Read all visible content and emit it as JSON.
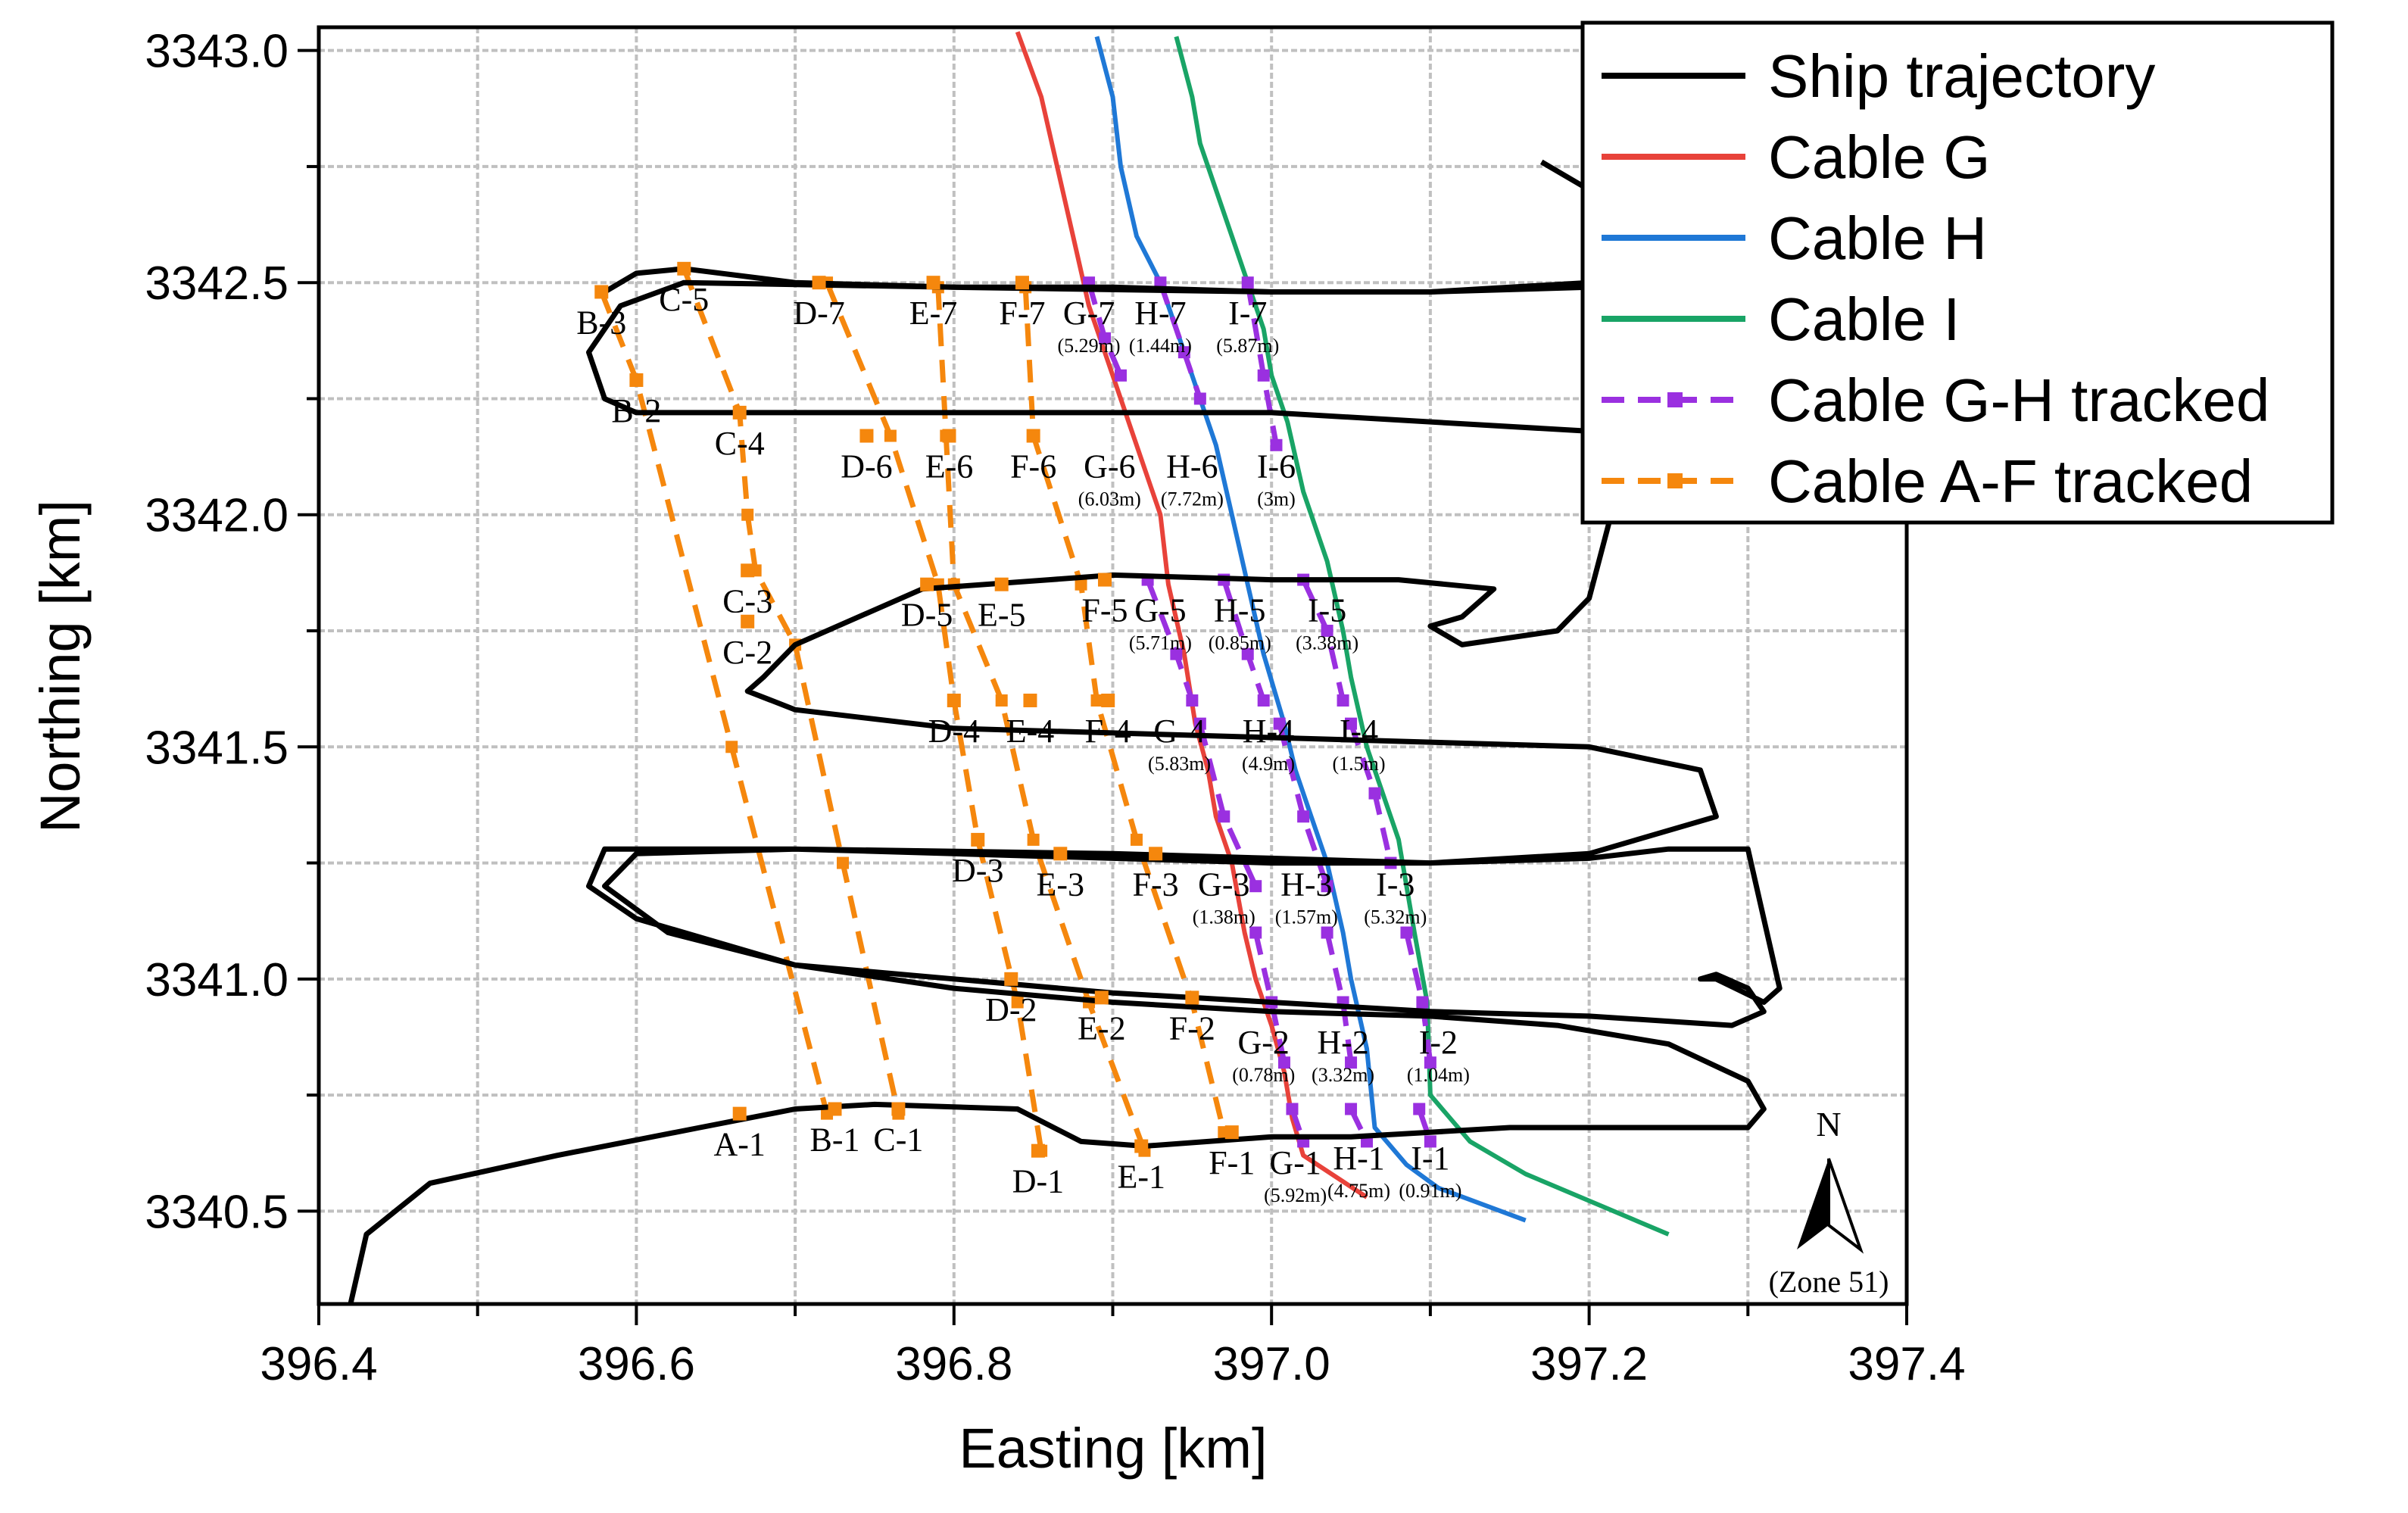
{
  "chart_data": {
    "type": "line",
    "title": "",
    "xlabel": "Easting [km]",
    "ylabel": "Northing [km]",
    "xlim": [
      396.4,
      397.4
    ],
    "ylim": [
      3340.3,
      3343.05
    ],
    "xticks": [
      "396.4",
      "396.6",
      "396.8",
      "397.0",
      "397.2",
      "397.4"
    ],
    "yticks": [
      "3340.5",
      "3341.0",
      "3341.5",
      "3342.0",
      "3342.5",
      "3343.0"
    ],
    "grid": true,
    "legend_position": "top-right",
    "colors": {
      "ship": "#000000",
      "cable_g": "#e8423a",
      "cable_h": "#1f78d6",
      "cable_i": "#19a466",
      "tracked_gh": "#9a30e0",
      "tracked_af": "#f5870d",
      "grid": "#c0c0c0"
    },
    "legend": [
      {
        "label": "Ship trajectory",
        "series": "ship",
        "style": "solid"
      },
      {
        "label": "Cable G",
        "series": "cable_g",
        "style": "solid"
      },
      {
        "label": "Cable H",
        "series": "cable_h",
        "style": "solid"
      },
      {
        "label": "Cable I",
        "series": "cable_i",
        "style": "solid"
      },
      {
        "label": "Cable G-H tracked",
        "series": "tracked_gh",
        "style": "dashed"
      },
      {
        "label": "Cable A-F tracked",
        "series": "tracked_af",
        "style": "dashed"
      }
    ],
    "series": [
      {
        "name": "Cable G",
        "key": "cable_g",
        "x": [
          396.84,
          396.855,
          396.865,
          396.875,
          396.885,
          396.895,
          396.905,
          396.92,
          396.93,
          396.935,
          396.945,
          396.952,
          396.96,
          396.965,
          396.975,
          396.983,
          396.99,
          397.0,
          397.008,
          397.013,
          397.02,
          397.06
        ],
        "y": [
          3343.04,
          3342.9,
          3342.75,
          3342.6,
          3342.45,
          3342.35,
          3342.25,
          3342.1,
          3342.0,
          3341.85,
          3341.7,
          3341.55,
          3341.45,
          3341.35,
          3341.25,
          3341.1,
          3341.0,
          3340.9,
          3340.8,
          3340.7,
          3340.62,
          3340.53
        ]
      },
      {
        "name": "Cable H",
        "key": "cable_h",
        "x": [
          396.89,
          396.9,
          396.905,
          396.915,
          396.93,
          396.94,
          396.955,
          396.965,
          396.975,
          396.985,
          396.995,
          397.008,
          397.015,
          397.025,
          397.035,
          397.045,
          397.05,
          397.06,
          397.065,
          397.085,
          397.105,
          397.16
        ],
        "y": [
          3343.03,
          3342.9,
          3342.75,
          3342.6,
          3342.5,
          3342.4,
          3342.25,
          3342.15,
          3342.0,
          3341.85,
          3341.7,
          3341.55,
          3341.45,
          3341.35,
          3341.25,
          3341.1,
          3341.0,
          3340.85,
          3340.68,
          3340.6,
          3340.55,
          3340.48
        ]
      },
      {
        "name": "Cable I",
        "key": "cable_i",
        "x": [
          396.94,
          396.95,
          396.955,
          396.965,
          396.975,
          396.985,
          396.995,
          397.0,
          397.01,
          397.02,
          397.035,
          397.045,
          397.05,
          397.06,
          397.07,
          397.08,
          397.09,
          397.098,
          397.1,
          397.125,
          397.16,
          397.25
        ],
        "y": [
          3343.03,
          3342.9,
          3342.8,
          3342.7,
          3342.6,
          3342.5,
          3342.4,
          3342.3,
          3342.2,
          3342.05,
          3341.9,
          3341.75,
          3341.65,
          3341.5,
          3341.4,
          3341.3,
          3341.1,
          3340.95,
          3340.75,
          3340.65,
          3340.58,
          3340.45
        ]
      },
      {
        "name": "Cable G-H tracked",
        "key": "tracked_gh",
        "dashed": true,
        "segments": [
          {
            "x": [
              396.885,
              396.895,
              396.905
            ],
            "y": [
              3342.5,
              3342.38,
              3342.3
            ]
          },
          {
            "x": [
              396.93,
              396.945,
              396.955
            ],
            "y": [
              3342.5,
              3342.35,
              3342.25
            ]
          },
          {
            "x": [
              396.985,
              396.995,
              397.003
            ],
            "y": [
              3342.5,
              3342.3,
              3342.15
            ]
          },
          {
            "x": [
              396.922,
              396.94,
              396.95
            ],
            "y": [
              3341.86,
              3341.7,
              3341.6
            ]
          },
          {
            "x": [
              396.97,
              396.985,
              396.995
            ],
            "y": [
              3341.86,
              3341.7,
              3341.6
            ]
          },
          {
            "x": [
              397.02,
              397.035,
              397.045
            ],
            "y": [
              3341.86,
              3341.75,
              3341.6
            ]
          },
          {
            "x": [
              396.955,
              396.97,
              396.99
            ],
            "y": [
              3341.55,
              3341.35,
              3341.2
            ]
          },
          {
            "x": [
              397.005,
              397.02,
              397.035
            ],
            "y": [
              3341.55,
              3341.35,
              3341.2
            ]
          },
          {
            "x": [
              397.05,
              397.065,
              397.075
            ],
            "y": [
              3341.55,
              3341.4,
              3341.25
            ]
          },
          {
            "x": [
              396.99,
              397.0,
              397.008
            ],
            "y": [
              3341.1,
              3340.95,
              3340.82
            ]
          },
          {
            "x": [
              397.035,
              397.045,
              397.05
            ],
            "y": [
              3341.1,
              3340.95,
              3340.82
            ]
          },
          {
            "x": [
              397.085,
              397.095,
              397.1
            ],
            "y": [
              3341.1,
              3340.95,
              3340.82
            ]
          },
          {
            "x": [
              397.013,
              397.02
            ],
            "y": [
              3340.72,
              3340.65
            ]
          },
          {
            "x": [
              397.05,
              397.06
            ],
            "y": [
              3340.72,
              3340.65
            ]
          },
          {
            "x": [
              397.093,
              397.1
            ],
            "y": [
              3340.72,
              3340.65
            ]
          }
        ]
      },
      {
        "name": "Cable A-F tracked",
        "key": "tracked_af",
        "dashed": true,
        "segments": [
          {
            "x": [
              396.578,
              396.6,
              396.66,
              396.72
            ],
            "y": [
              3342.48,
              3342.29,
              3341.5,
              3340.71
            ]
          },
          {
            "x": [
              396.63,
              396.665,
              396.67,
              396.675,
              396.7,
              396.73,
              396.765
            ],
            "y": [
              3342.53,
              3342.22,
              3342.0,
              3341.88,
              3341.72,
              3341.25,
              3340.71
            ]
          },
          {
            "x": [
              396.72,
              396.76,
              396.79,
              396.8,
              396.815,
              396.84,
              396.855
            ],
            "y": [
              3342.5,
              3342.17,
              3341.85,
              3341.6,
              3341.3,
              3340.95,
              3340.63
            ]
          },
          {
            "x": [
              396.79,
              396.795,
              396.8,
              396.83,
              396.85,
              396.885,
              396.92
            ],
            "y": [
              3342.49,
              3342.17,
              3341.85,
              3341.6,
              3341.3,
              3340.95,
              3340.63
            ]
          },
          {
            "x": [
              396.845,
              396.85,
              396.88,
              396.89,
              396.915,
              396.95,
              396.97
            ],
            "y": [
              3342.49,
              3342.17,
              3341.85,
              3341.6,
              3341.3,
              3340.95,
              3340.67
            ]
          }
        ]
      },
      {
        "name": "Ship trajectory",
        "key": "ship",
        "x": [
          396.42,
          396.43,
          396.47,
          396.55,
          396.64,
          396.7,
          396.75,
          396.84,
          396.88,
          396.92,
          396.96,
          397.0,
          397.05,
          397.1,
          397.15,
          397.3,
          397.31,
          397.3,
          397.25,
          397.18,
          397.1,
          397.0,
          396.9,
          396.8,
          396.7,
          396.6,
          396.57,
          396.58,
          396.7,
          396.8,
          396.9,
          397.0,
          397.1,
          397.2,
          397.25,
          397.3,
          397.32,
          397.31,
          397.28,
          397.27,
          397.28,
          397.3,
          397.31,
          397.29,
          397.2,
          397.1,
          397.0,
          396.9,
          396.8,
          396.7,
          396.62,
          396.58,
          396.6,
          396.7,
          396.9,
          397.0,
          397.1,
          397.2,
          397.28,
          397.27,
          397.2,
          397.0,
          396.8,
          396.7,
          396.67,
          396.68,
          396.7,
          396.78,
          396.86,
          396.9,
          397.0,
          397.08,
          397.14,
          397.12,
          397.1,
          397.12,
          397.18,
          397.2,
          397.21,
          397.22,
          397.2,
          397.0,
          396.8,
          396.6,
          396.58,
          396.57,
          396.59,
          396.63,
          396.8,
          397.0,
          397.1,
          397.2,
          397.24,
          397.2,
          397.17,
          397.17
        ],
        "y": [
          3340.3,
          3340.45,
          3340.56,
          3340.62,
          3340.68,
          3340.72,
          3340.73,
          3340.72,
          3340.65,
          3340.64,
          3340.65,
          3340.66,
          3340.66,
          3340.67,
          3340.68,
          3340.68,
          3340.72,
          3340.78,
          3340.86,
          3340.9,
          3340.92,
          3340.93,
          3340.95,
          3340.98,
          3341.03,
          3341.13,
          3341.2,
          3341.28,
          3341.28,
          3341.27,
          3341.26,
          3341.25,
          3341.25,
          3341.26,
          3341.28,
          3341.28,
          3340.98,
          3340.95,
          3341.0,
          3341.0,
          3341.01,
          3340.98,
          3340.93,
          3340.9,
          3340.92,
          3340.93,
          3340.95,
          3340.97,
          3341.0,
          3341.03,
          3341.1,
          3341.2,
          3341.27,
          3341.28,
          3341.27,
          3341.26,
          3341.25,
          3341.27,
          3341.35,
          3341.45,
          3341.5,
          3341.52,
          3341.54,
          3341.58,
          3341.62,
          3341.65,
          3341.72,
          3341.84,
          3341.86,
          3341.87,
          3341.86,
          3341.86,
          3341.84,
          3341.78,
          3341.76,
          3341.72,
          3341.75,
          3341.82,
          3341.95,
          3342.08,
          3342.18,
          3342.22,
          3342.22,
          3342.22,
          3342.25,
          3342.35,
          3342.45,
          3342.5,
          3342.49,
          3342.48,
          3342.48,
          3342.5,
          3342.6,
          3342.7,
          3342.76,
          3342.76
        ]
      },
      {
        "name": "Ship trajectory (segment)",
        "key": "ship",
        "x": [
          396.58,
          396.6,
          396.63,
          396.7,
          396.8,
          396.9,
          397.0,
          397.1,
          397.2,
          397.25
        ],
        "y": [
          3342.48,
          3342.52,
          3342.53,
          3342.5,
          3342.49,
          3342.49,
          3342.48,
          3342.48,
          3342.49,
          3342.5
        ]
      }
    ],
    "point_labels": [
      {
        "text": "A-1",
        "x": 396.665,
        "y": 3340.71,
        "marker": true
      },
      {
        "text": "B-1",
        "x": 396.725,
        "y": 3340.72,
        "marker": true
      },
      {
        "text": "C-1",
        "x": 396.765,
        "y": 3340.72,
        "marker": true
      },
      {
        "text": "D-1",
        "x": 396.853,
        "y": 3340.63,
        "marker": true
      },
      {
        "text": "E-1",
        "x": 396.918,
        "y": 3340.64,
        "marker": true
      },
      {
        "text": "F-1",
        "x": 396.975,
        "y": 3340.67,
        "marker": true
      },
      {
        "text": "G-1",
        "x": 397.015,
        "y": 3340.67,
        "marker": false,
        "dev": "(5.92m)"
      },
      {
        "text": "H-1",
        "x": 397.055,
        "y": 3340.68,
        "marker": false,
        "dev": "(4.75m)"
      },
      {
        "text": "I-1",
        "x": 397.1,
        "y": 3340.68,
        "marker": false,
        "dev": "(0.91m)"
      },
      {
        "text": "D-2",
        "x": 396.836,
        "y": 3341.0,
        "marker": true
      },
      {
        "text": "E-2",
        "x": 396.893,
        "y": 3340.96,
        "marker": true
      },
      {
        "text": "F-2",
        "x": 396.95,
        "y": 3340.96,
        "marker": true
      },
      {
        "text": "G-2",
        "x": 396.995,
        "y": 3340.93,
        "marker": false,
        "dev": "(0.78m)"
      },
      {
        "text": "H-2",
        "x": 397.045,
        "y": 3340.93,
        "marker": false,
        "dev": "(3.32m)"
      },
      {
        "text": "I-2",
        "x": 397.105,
        "y": 3340.93,
        "marker": false,
        "dev": "(1.04m)"
      },
      {
        "text": "D-3",
        "x": 396.815,
        "y": 3341.3,
        "marker": true
      },
      {
        "text": "E-3",
        "x": 396.867,
        "y": 3341.27,
        "marker": true
      },
      {
        "text": "F-3",
        "x": 396.927,
        "y": 3341.27,
        "marker": true
      },
      {
        "text": "G-3",
        "x": 396.97,
        "y": 3341.27,
        "marker": false,
        "dev": "(1.38m)"
      },
      {
        "text": "H-3",
        "x": 397.022,
        "y": 3341.27,
        "marker": false,
        "dev": "(1.57m)"
      },
      {
        "text": "I-3",
        "x": 397.078,
        "y": 3341.27,
        "marker": false,
        "dev": "(5.32m)"
      },
      {
        "text": "D-4",
        "x": 396.8,
        "y": 3341.6,
        "marker": true
      },
      {
        "text": "E-4",
        "x": 396.848,
        "y": 3341.6,
        "marker": true
      },
      {
        "text": "F-4",
        "x": 396.897,
        "y": 3341.6,
        "marker": true
      },
      {
        "text": "G-4",
        "x": 396.942,
        "y": 3341.6,
        "marker": false,
        "dev": "(5.83m)"
      },
      {
        "text": "H-4",
        "x": 396.998,
        "y": 3341.6,
        "marker": false,
        "dev": "(4.9m)"
      },
      {
        "text": "I-4",
        "x": 397.055,
        "y": 3341.6,
        "marker": false,
        "dev": "(1.5m)"
      },
      {
        "text": "D-5",
        "x": 396.783,
        "y": 3341.85,
        "marker": true
      },
      {
        "text": "E-5",
        "x": 396.83,
        "y": 3341.85,
        "marker": true
      },
      {
        "text": "F-5",
        "x": 396.895,
        "y": 3341.86,
        "marker": true
      },
      {
        "text": "G-5",
        "x": 396.93,
        "y": 3341.86,
        "marker": false,
        "dev": "(5.71m)"
      },
      {
        "text": "H-5",
        "x": 396.98,
        "y": 3341.86,
        "marker": false,
        "dev": "(0.85m)"
      },
      {
        "text": "I-5",
        "x": 397.035,
        "y": 3341.86,
        "marker": false,
        "dev": "(3.38m)"
      },
      {
        "text": "D-6",
        "x": 396.745,
        "y": 3342.17,
        "marker": true
      },
      {
        "text": "E-6",
        "x": 396.797,
        "y": 3342.17,
        "marker": true
      },
      {
        "text": "F-6",
        "x": 396.85,
        "y": 3342.17,
        "marker": true
      },
      {
        "text": "G-6",
        "x": 396.898,
        "y": 3342.17,
        "marker": false,
        "dev": "(6.03m)"
      },
      {
        "text": "H-6",
        "x": 396.95,
        "y": 3342.17,
        "marker": false,
        "dev": "(7.72m)"
      },
      {
        "text": "I-6",
        "x": 397.003,
        "y": 3342.17,
        "marker": false,
        "dev": "(3m)"
      },
      {
        "text": "D-7",
        "x": 396.715,
        "y": 3342.5,
        "marker": true
      },
      {
        "text": "E-7",
        "x": 396.787,
        "y": 3342.5,
        "marker": true
      },
      {
        "text": "F-7",
        "x": 396.843,
        "y": 3342.5,
        "marker": true
      },
      {
        "text": "G-7",
        "x": 396.885,
        "y": 3342.5,
        "marker": false,
        "dev": "(5.29m)"
      },
      {
        "text": "H-7",
        "x": 396.93,
        "y": 3342.5,
        "marker": false,
        "dev": "(1.44m)"
      },
      {
        "text": "I-7",
        "x": 396.985,
        "y": 3342.5,
        "marker": false,
        "dev": "(5.87m)"
      },
      {
        "text": "B-2",
        "x": 396.6,
        "y": 3342.29,
        "marker": true
      },
      {
        "text": "B-3",
        "x": 396.578,
        "y": 3342.48,
        "marker": true
      },
      {
        "text": "C-2",
        "x": 396.67,
        "y": 3341.77,
        "marker": true
      },
      {
        "text": "C-3",
        "x": 396.67,
        "y": 3341.88,
        "marker": true
      },
      {
        "text": "C-4",
        "x": 396.665,
        "y": 3342.22,
        "marker": true
      },
      {
        "text": "C-5",
        "x": 396.63,
        "y": 3342.53,
        "marker": true
      }
    ],
    "north_arrow": {
      "letter": "N",
      "zone": "(Zone 51)"
    }
  }
}
